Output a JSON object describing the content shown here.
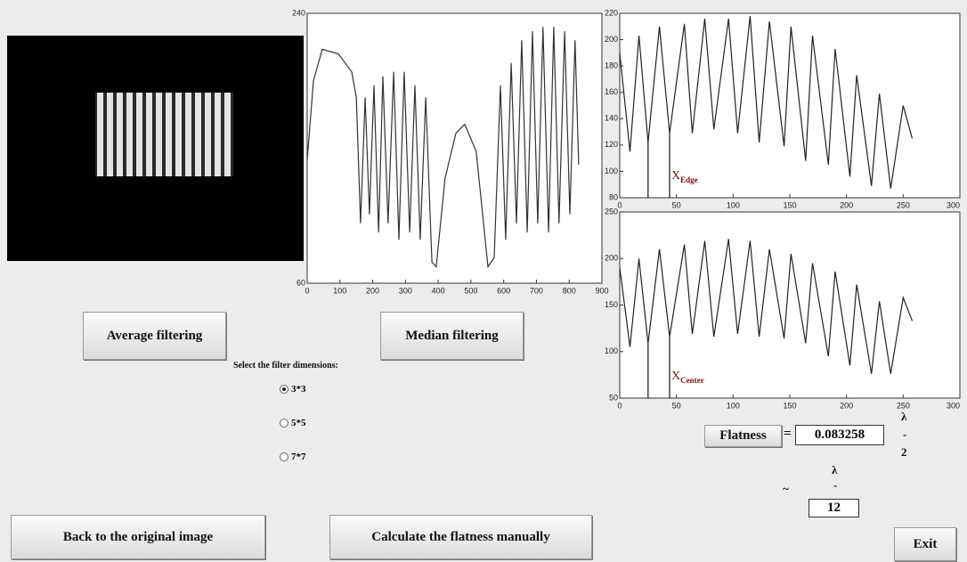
{
  "chart_data": [
    {
      "type": "line",
      "color": "#333333",
      "x": [
        0,
        19,
        46,
        95,
        136,
        150,
        163,
        177,
        190,
        204,
        218,
        231,
        247,
        264,
        280,
        296,
        313,
        329,
        345,
        362,
        381,
        394,
        421,
        454,
        481,
        516,
        552,
        571,
        590,
        606,
        623,
        639,
        655,
        672,
        688,
        704,
        720,
        737,
        753,
        769,
        786,
        802,
        818,
        829
      ],
      "values": [
        142,
        195,
        216,
        213,
        201,
        184,
        100,
        184,
        106,
        192,
        94,
        198,
        100,
        201,
        89,
        201,
        94,
        192,
        89,
        184,
        74,
        71,
        130,
        160,
        166,
        148,
        71,
        77,
        192,
        89,
        207,
        100,
        222,
        94,
        228,
        100,
        231,
        94,
        231,
        100,
        228,
        106,
        222,
        139
      ],
      "xlim": [
        0,
        900
      ],
      "xticks": [
        0,
        100,
        200,
        300,
        400,
        500,
        600,
        700,
        800,
        900
      ],
      "ylim": [
        60,
        240
      ],
      "yticks": [
        60,
        240
      ]
    },
    {
      "type": "line",
      "color": "#222222",
      "x": [
        0,
        9,
        17,
        25,
        35,
        44,
        57,
        64,
        75,
        83,
        96,
        104,
        115,
        123,
        132,
        145,
        151,
        164,
        170,
        184,
        190,
        203,
        209,
        222,
        229,
        239,
        250,
        258
      ],
      "values": [
        190,
        115,
        203,
        122,
        210,
        129,
        212,
        129,
        216,
        132,
        216,
        129,
        218,
        122,
        214,
        119,
        210,
        108,
        203,
        105,
        193,
        96,
        173,
        89,
        159,
        87,
        150,
        125
      ],
      "xlim": [
        0,
        300
      ],
      "xticks": [
        0,
        50,
        100,
        150,
        200,
        250,
        300
      ],
      "ylim": [
        80,
        220
      ],
      "yticks": [
        80,
        100,
        120,
        140,
        160,
        180,
        200,
        220
      ],
      "vlines": [
        25,
        44
      ],
      "annotation": {
        "text": "X",
        "subscript": "Edge"
      }
    },
    {
      "type": "line",
      "color": "#222222",
      "x": [
        0,
        9,
        17,
        25,
        35,
        44,
        57,
        64,
        75,
        83,
        96,
        104,
        115,
        123,
        132,
        145,
        151,
        164,
        170,
        184,
        190,
        203,
        209,
        222,
        229,
        239,
        250,
        258
      ],
      "values": [
        190,
        105,
        200,
        109,
        210,
        116,
        215,
        119,
        219,
        116,
        221,
        119,
        219,
        116,
        210,
        114,
        205,
        109,
        195,
        95,
        186,
        85,
        172,
        76,
        154,
        76,
        158,
        133
      ],
      "xlim": [
        0,
        300
      ],
      "xticks": [
        0,
        50,
        100,
        150,
        200,
        250,
        300
      ],
      "ylim": [
        50,
        250
      ],
      "yticks": [
        50,
        100,
        150,
        200,
        250
      ],
      "vlines": [
        25,
        44
      ],
      "annotation": {
        "text": "X",
        "subscript": "Center"
      }
    }
  ],
  "buttons": {
    "average": "Average filtering",
    "median": "Median filtering",
    "back": "Back to the original image",
    "manual": "Calculate the flatness manually",
    "flatness": "Flatness",
    "exit": "Exit"
  },
  "filter": {
    "prompt": "Select the filter dimensions:",
    "options": [
      {
        "label": "3*3",
        "checked": true
      },
      {
        "label": "5*5",
        "checked": false
      },
      {
        "label": "7*7",
        "checked": false
      }
    ]
  },
  "result": {
    "equals": "=",
    "value": "0.083258",
    "fraction": {
      "numerator": "λ",
      "bar": "-",
      "denominator": "2"
    },
    "tilde": "~",
    "fraction2": {
      "numerator": "λ",
      "bar": "-"
    },
    "count": "12"
  }
}
